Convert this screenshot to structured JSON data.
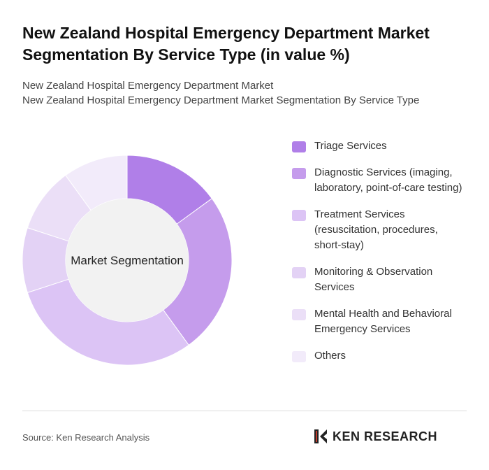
{
  "chart_data": {
    "type": "donut",
    "title": "New Zealand Hospital Emergency Department Market Segmentation By Service Type (in value %)",
    "subtitle": [
      "New Zealand Hospital Emergency Department Market",
      "New Zealand Hospital Emergency Department Market Segmentation By Service Type"
    ],
    "center_label": "Market Segmentation",
    "categories": [
      "Triage Services",
      "Diagnostic Services (imaging, laboratory, point-of-care testing)",
      "Treatment Services (resuscitation, procedures, short-stay)",
      "Monitoring & Observation Services",
      "Mental Health and Behavioral Emergency Services",
      "Others"
    ],
    "values": [
      15,
      25,
      30,
      10,
      10,
      10
    ],
    "colors": [
      "#b07fe8",
      "#c59cec",
      "#dcc4f5",
      "#e3d2f5",
      "#ebdff7",
      "#f2ebfa"
    ]
  },
  "footer": {
    "source": "Source: Ken Research Analysis",
    "logo": "KEN RESEARCH"
  }
}
